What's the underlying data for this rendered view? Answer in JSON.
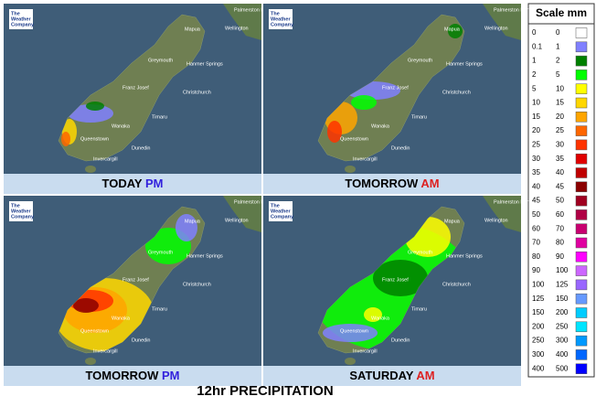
{
  "panels": [
    {
      "day": "TODAY",
      "period": "PM",
      "period_color": "#3322dd"
    },
    {
      "day": "TOMORROW",
      "period": "AM",
      "period_color": "#dd2222"
    },
    {
      "day": "TOMORROW",
      "period": "PM",
      "period_color": "#3322dd"
    },
    {
      "day": "SATURDAY",
      "period": "AM",
      "period_color": "#dd2222"
    }
  ],
  "logo": {
    "line1": "The",
    "line2": "Weather",
    "line3": "Company"
  },
  "cities": [
    "Palmerston North",
    "Wellington",
    "Mapua",
    "Greymouth",
    "Hanmer Springs",
    "Franz Josef",
    "Christchurch",
    "Timaru",
    "Wanaka",
    "Queenstown",
    "Dunedin",
    "Invercargill"
  ],
  "scale": {
    "title": "Scale mm",
    "rows": [
      {
        "from": "0",
        "to": "0",
        "color": "#ffffff"
      },
      {
        "from": "0.1",
        "to": "1",
        "color": "#8080ff"
      },
      {
        "from": "1",
        "to": "2",
        "color": "#008000"
      },
      {
        "from": "2",
        "to": "5",
        "color": "#00ff00"
      },
      {
        "from": "5",
        "to": "10",
        "color": "#ffff00"
      },
      {
        "from": "10",
        "to": "15",
        "color": "#ffd700"
      },
      {
        "from": "15",
        "to": "20",
        "color": "#ffa500"
      },
      {
        "from": "20",
        "to": "25",
        "color": "#ff6600"
      },
      {
        "from": "25",
        "to": "30",
        "color": "#ff3300"
      },
      {
        "from": "30",
        "to": "35",
        "color": "#e00000"
      },
      {
        "from": "35",
        "to": "40",
        "color": "#c00000"
      },
      {
        "from": "40",
        "to": "45",
        "color": "#8b0000"
      },
      {
        "from": "45",
        "to": "50",
        "color": "#a00020"
      },
      {
        "from": "50",
        "to": "60",
        "color": "#b00045"
      },
      {
        "from": "60",
        "to": "70",
        "color": "#c80070"
      },
      {
        "from": "70",
        "to": "80",
        "color": "#e000a0"
      },
      {
        "from": "80",
        "to": "90",
        "color": "#ff00ff"
      },
      {
        "from": "90",
        "to": "100",
        "color": "#cc66ff"
      },
      {
        "from": "100",
        "to": "125",
        "color": "#9966ff"
      },
      {
        "from": "125",
        "to": "150",
        "color": "#6699ff"
      },
      {
        "from": "150",
        "to": "200",
        "color": "#00ccff"
      },
      {
        "from": "200",
        "to": "250",
        "color": "#00e5ff"
      },
      {
        "from": "250",
        "to": "300",
        "color": "#0099ff"
      },
      {
        "from": "300",
        "to": "400",
        "color": "#0066ff"
      },
      {
        "from": "400",
        "to": "500",
        "color": "#0000ff"
      }
    ]
  },
  "footer": "12hr PRECIPITATION"
}
